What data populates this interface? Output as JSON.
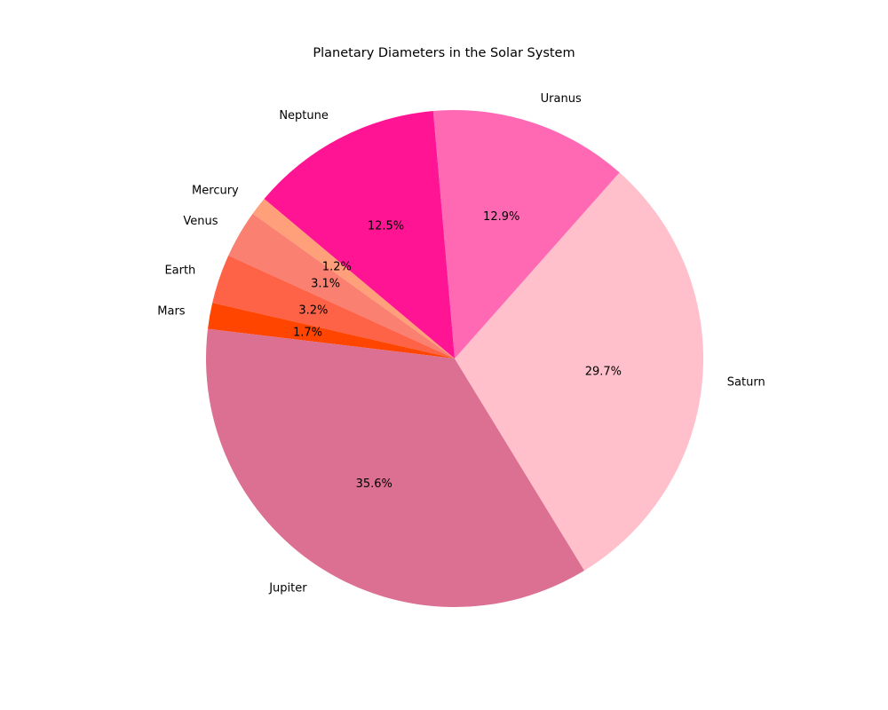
{
  "chart_data": {
    "type": "pie",
    "title": "Planetary Diameters in the Solar System",
    "categories": [
      "Mercury",
      "Venus",
      "Earth",
      "Mars",
      "Jupiter",
      "Saturn",
      "Uranus",
      "Neptune"
    ],
    "values": [
      1.2,
      3.1,
      3.2,
      1.7,
      35.6,
      29.7,
      12.9,
      12.5
    ],
    "labels": [
      "1.2%",
      "3.1%",
      "3.2%",
      "1.7%",
      "35.6%",
      "29.7%",
      "12.9%",
      "12.5%"
    ],
    "colors": [
      "#ffa07a",
      "#fa8072",
      "#ff6347",
      "#ff4500",
      "#db7093",
      "#ffc0cb",
      "#ff69b4",
      "#ff1493"
    ],
    "start_angle_deg": 140,
    "direction": "counterclockwise",
    "legend": "none"
  }
}
